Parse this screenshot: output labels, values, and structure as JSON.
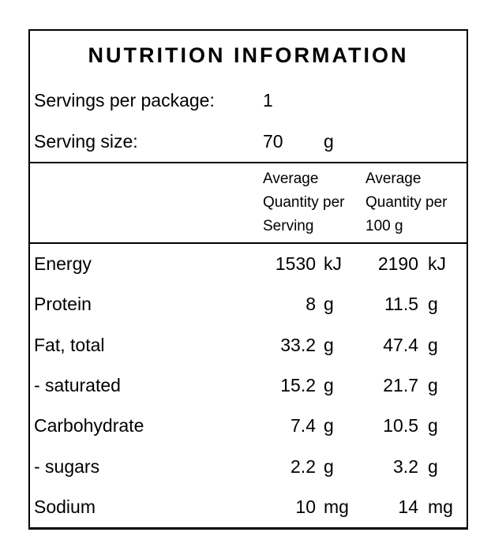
{
  "colors": {
    "background": "#ffffff",
    "text": "#000000",
    "border": "#000000"
  },
  "panel": {
    "title": "NUTRITION INFORMATION",
    "servings_per_package": {
      "label": "Servings per package:",
      "value": "1"
    },
    "serving_size": {
      "label": "Serving size:",
      "value": "70",
      "unit": "g"
    },
    "columns": [
      {
        "lines": [
          "Average",
          "Quantity per",
          "Serving"
        ]
      },
      {
        "lines": [
          "Average",
          "Quantity per",
          "100 g"
        ]
      }
    ],
    "rows": [
      {
        "label": "Energy",
        "per_serving": "1530",
        "per_serving_unit": "kJ",
        "per_100g": "2190",
        "per_100g_unit": "kJ"
      },
      {
        "label": "Protein",
        "per_serving": "8",
        "per_serving_unit": "g",
        "per_100g": "11.5",
        "per_100g_unit": "g"
      },
      {
        "label": "Fat, total",
        "per_serving": "33.2",
        "per_serving_unit": "g",
        "per_100g": "47.4",
        "per_100g_unit": "g"
      },
      {
        "label": "- saturated",
        "per_serving": "15.2",
        "per_serving_unit": "g",
        "per_100g": "21.7",
        "per_100g_unit": "g"
      },
      {
        "label": "Carbohydrate",
        "per_serving": "7.4",
        "per_serving_unit": "g",
        "per_100g": "10.5",
        "per_100g_unit": "g"
      },
      {
        "label": "- sugars",
        "per_serving": "2.2",
        "per_serving_unit": "g",
        "per_100g": "3.2",
        "per_100g_unit": "g"
      },
      {
        "label": "Sodium",
        "per_serving": "10",
        "per_serving_unit": "mg",
        "per_100g": "14",
        "per_100g_unit": "mg"
      }
    ]
  }
}
